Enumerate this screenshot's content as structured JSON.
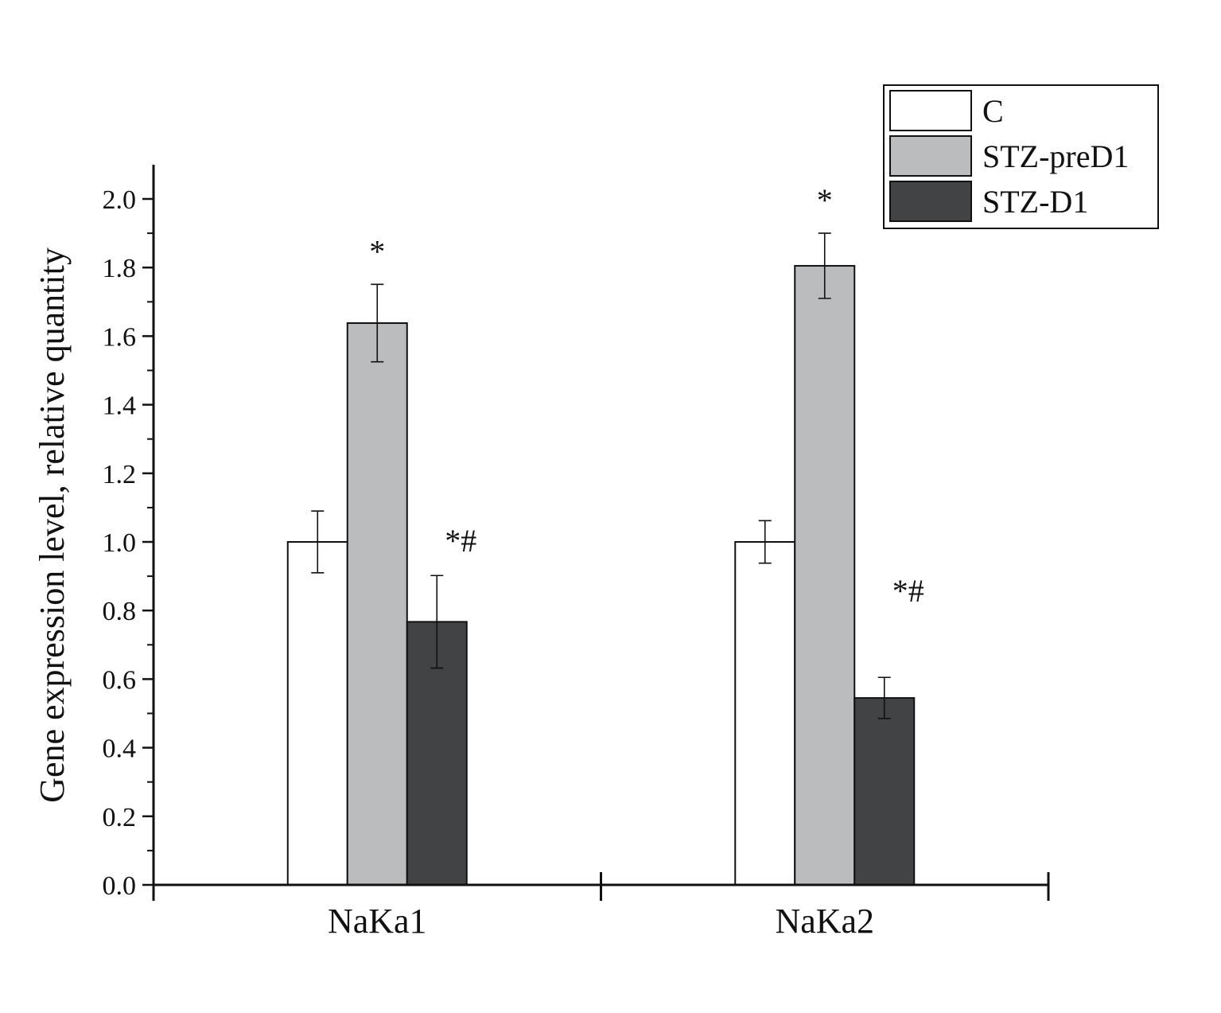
{
  "chart_data": {
    "type": "bar",
    "title": "",
    "xlabel": "",
    "ylabel": "Gene expression level, relative quantity",
    "categories": [
      "NaKa1",
      "NaKa2"
    ],
    "ylim": [
      0,
      2.1
    ],
    "yticks": [
      "0.0",
      "0.2",
      "0.4",
      "0.6",
      "0.8",
      "1.0",
      "1.2",
      "1.4",
      "1.6",
      "1.8",
      "2.0"
    ],
    "grid": false,
    "legend_position": "top-right",
    "series": [
      {
        "name": "C",
        "color": "#ffffff",
        "values": [
          1.0,
          1.0
        ],
        "errors": [
          0.09,
          0.062
        ],
        "annotations": [
          "",
          ""
        ]
      },
      {
        "name": "STZ-preD1",
        "color": "#bbbcbe",
        "values": [
          1.638,
          1.805
        ],
        "errors": [
          0.113,
          0.095
        ],
        "annotations": [
          "*",
          "*"
        ]
      },
      {
        "name": "STZ-D1",
        "color": "#424345",
        "values": [
          0.767,
          0.545
        ],
        "errors": [
          0.135,
          0.06
        ],
        "annotations": [
          "*#",
          "*#"
        ]
      }
    ]
  }
}
